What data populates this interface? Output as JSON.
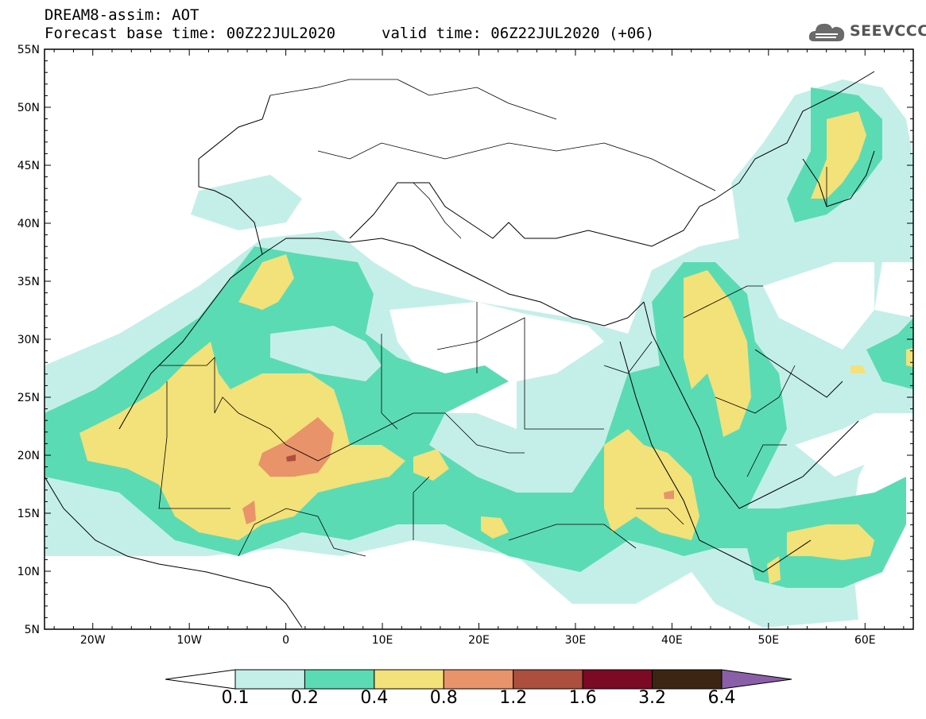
{
  "header": {
    "line1": "DREAM8-assim: AOT",
    "line2_left": "Forecast base time: 00Z22JUL2020",
    "line2_right": "valid time: 06Z22JUL2020 (+06)",
    "logo_text": "SEEVCCC"
  },
  "map": {
    "lat_ticks": [
      "55N",
      "50N",
      "45N",
      "40N",
      "35N",
      "30N",
      "25N",
      "20N",
      "15N",
      "10N",
      "5N"
    ],
    "lon_ticks": [
      "20W",
      "10W",
      "0",
      "10E",
      "20E",
      "30E",
      "40E",
      "50E",
      "60E"
    ],
    "lon_range": [
      -25,
      65
    ],
    "lat_range": [
      5,
      55
    ]
  },
  "colorbar": {
    "labels": [
      "0.1",
      "0.2",
      "0.4",
      "0.8",
      "1.2",
      "1.6",
      "3.2",
      "6.4"
    ],
    "colors": [
      "#c4efe9",
      "#5bdbb3",
      "#f3e17a",
      "#e8936a",
      "#ad4f3e",
      "#7c0a24",
      "#3d2513",
      "#8a5fa8"
    ],
    "under_color": "#ffffff",
    "over_color": "#8a5fa8"
  },
  "colors": {
    "aot_01": "#c4efe9",
    "aot_02": "#5bdbb3",
    "aot_04": "#f3e17a",
    "aot_08": "#e8936a",
    "aot_12": "#ad4f3e"
  }
}
